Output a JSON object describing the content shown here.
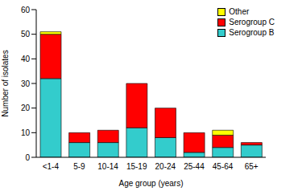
{
  "chart_data": {
    "type": "bar",
    "stacked": true,
    "x_label": "Age group (years)",
    "y_label": "Number of isolates",
    "categories": [
      "<1-4",
      "5-9",
      "10-14",
      "15-19",
      "20-24",
      "25-44",
      "45-64",
      "65+"
    ],
    "series": [
      {
        "name": "Serogroup B",
        "color": "#33CCCC",
        "values": [
          32,
          6,
          6,
          12,
          8,
          2,
          4,
          5
        ]
      },
      {
        "name": "Serogroup C",
        "color": "#FF0000",
        "values": [
          18,
          4,
          5,
          18,
          12,
          8,
          5,
          1
        ]
      },
      {
        "name": "Other",
        "color": "#FFFF00",
        "values": [
          1,
          0,
          0,
          0,
          0,
          0,
          2,
          0
        ]
      }
    ],
    "ylim": [
      0,
      60
    ],
    "yticks": [
      0,
      10,
      20,
      30,
      40,
      50,
      60
    ],
    "grid": false,
    "legend": "upper right"
  }
}
